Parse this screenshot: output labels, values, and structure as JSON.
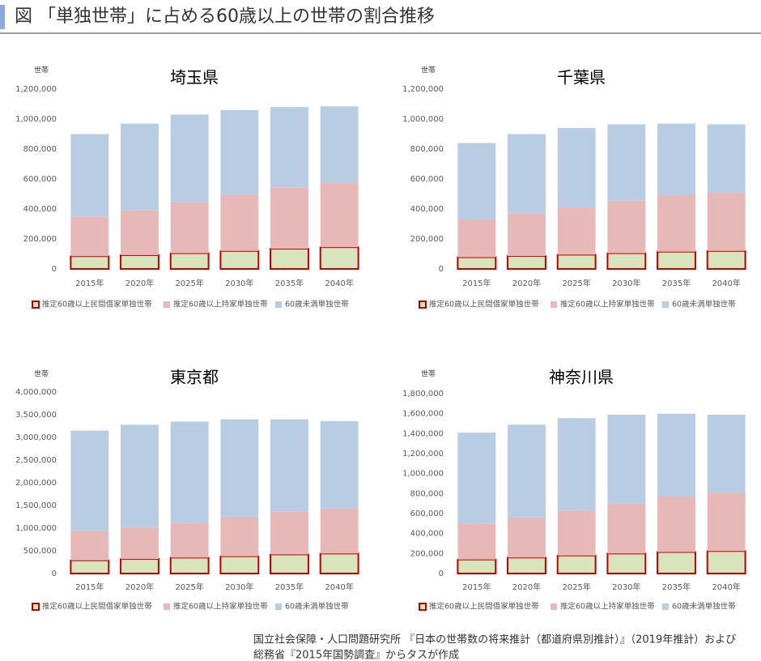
{
  "title": "図 「単独世帯」に占める60歳以上の世帯の割合推移",
  "chart_data": [
    {
      "type": "stacked_bar",
      "title": "埼玉県",
      "y_label": "世帯",
      "categories": [
        "2015年",
        "2020年",
        "2025年",
        "2030年",
        "2035年",
        "2040年"
      ],
      "series": [
        {
          "name": "推定60歳以上民間借家単独世帯",
          "color": "#d8e4bc",
          "edgecolor": "#c00000",
          "values": [
            85000,
            92000,
            105000,
            120000,
            135000,
            145000
          ]
        },
        {
          "name": "推定60歳以上持家単独世帯",
          "color": "#e6b8b7",
          "values": [
            265000,
            298000,
            340000,
            375000,
            410000,
            430000
          ]
        },
        {
          "name": "60歳未満単独世帯",
          "color": "#b8cce4",
          "values": [
            550000,
            580000,
            585000,
            565000,
            535000,
            510000
          ]
        }
      ],
      "ylim": [
        0,
        1200000
      ],
      "yticks": [
        0,
        {
          "value": 200000,
          "label": "200,000"
        },
        {
          "value": 400000,
          "label": "400,000"
        },
        {
          "value": 600000,
          "label": "600,000"
        },
        {
          "value": 800000,
          "label": "800,000"
        },
        {
          "value": 1000000,
          "label": "1,000,000"
        },
        {
          "value": 1200000,
          "label": "1,200,000"
        }
      ]
    },
    {
      "type": "stacked_bar",
      "title": "千葉県",
      "y_label": "世帯",
      "categories": [
        "2015年",
        "2020年",
        "2025年",
        "2030年",
        "2035年",
        "2040年"
      ],
      "series": [
        {
          "name": "推定60歳以上民間借家単独世帯",
          "color": "#d8e4bc",
          "edgecolor": "#c00000",
          "values": [
            78000,
            86000,
            95000,
            105000,
            115000,
            120000
          ]
        },
        {
          "name": "推定60歳以上持家単独世帯",
          "color": "#e6b8b7",
          "values": [
            252000,
            286000,
            315000,
            350000,
            377000,
            390000
          ]
        },
        {
          "name": "60歳未満単独世帯",
          "color": "#b8cce4",
          "values": [
            510000,
            528000,
            530000,
            510000,
            478000,
            455000
          ]
        }
      ],
      "ylim": [
        0,
        1200000
      ],
      "yticks": [
        0,
        {
          "value": 200000,
          "label": "200,000"
        },
        {
          "value": 400000,
          "label": "400,000"
        },
        {
          "value": 600000,
          "label": "600,000"
        },
        {
          "value": 800000,
          "label": "800,000"
        },
        {
          "value": 1000000,
          "label": "1,000,000"
        },
        {
          "value": 1200000,
          "label": "1,200,000"
        }
      ]
    },
    {
      "type": "stacked_bar",
      "title": "東京都",
      "y_label": "世帯",
      "categories": [
        "2015年",
        "2020年",
        "2025年",
        "2030年",
        "2035年",
        "2040年"
      ],
      "series": [
        {
          "name": "推定60歳以上民間借家単独世帯",
          "color": "#d8e4bc",
          "edgecolor": "#c00000",
          "values": [
            290000,
            320000,
            350000,
            380000,
            420000,
            440000
          ]
        },
        {
          "name": "推定60歳以上持家単独世帯",
          "color": "#e6b8b7",
          "values": [
            650000,
            700000,
            770000,
            860000,
            950000,
            990000
          ]
        },
        {
          "name": "60歳未満単独世帯",
          "color": "#b8cce4",
          "values": [
            2210000,
            2260000,
            2230000,
            2160000,
            2030000,
            1930000
          ]
        }
      ],
      "ylim": [
        0,
        4000000
      ],
      "yticks": [
        0,
        {
          "value": 500000,
          "label": "500,000"
        },
        {
          "value": 1000000,
          "label": "1,000,000"
        },
        {
          "value": 1500000,
          "label": "1,500,000"
        },
        {
          "value": 2000000,
          "label": "2,000,000"
        },
        {
          "value": 2500000,
          "label": "2,500,000"
        },
        {
          "value": 3000000,
          "label": "3,000,000"
        },
        {
          "value": 3500000,
          "label": "3,500,000"
        },
        {
          "value": 4000000,
          "label": "4,000,000"
        }
      ]
    },
    {
      "type": "stacked_bar",
      "title": "神奈川県",
      "y_label": "世帯",
      "categories": [
        "2015年",
        "2020年",
        "2025年",
        "2030年",
        "2035年",
        "2040年"
      ],
      "series": [
        {
          "name": "推定60歳以上民間借家単独世帯",
          "color": "#d8e4bc",
          "edgecolor": "#c00000",
          "values": [
            140000,
            160000,
            180000,
            200000,
            215000,
            225000
          ]
        },
        {
          "name": "推定60歳以上持家単独世帯",
          "color": "#e6b8b7",
          "values": [
            360000,
            400000,
            450000,
            500000,
            555000,
            585000
          ]
        },
        {
          "name": "60歳未満単独世帯",
          "color": "#b8cce4",
          "values": [
            910000,
            930000,
            925000,
            890000,
            830000,
            780000
          ]
        }
      ],
      "ylim": [
        0,
        1800000
      ],
      "yticks": [
        0,
        {
          "value": 200000,
          "label": "200,000"
        },
        {
          "value": 400000,
          "label": "400,000"
        },
        {
          "value": 600000,
          "label": "600,000"
        },
        {
          "value": 800000,
          "label": "800,000"
        },
        {
          "value": 1000000,
          "label": "1,000,000"
        },
        {
          "value": 1200000,
          "label": "1,200,000"
        },
        {
          "value": 1400000,
          "label": "1,400,000"
        },
        {
          "value": 1600000,
          "label": "1,600,000"
        },
        {
          "value": 1800000,
          "label": "1,800,000"
        }
      ]
    }
  ],
  "source": [
    "国立社会保障・人口問題研究所 『日本の世帯数の将来推計（都道府県別推計）』（2019年推計）および",
    "総務省『2015年国勢調査』からタスが作成"
  ]
}
